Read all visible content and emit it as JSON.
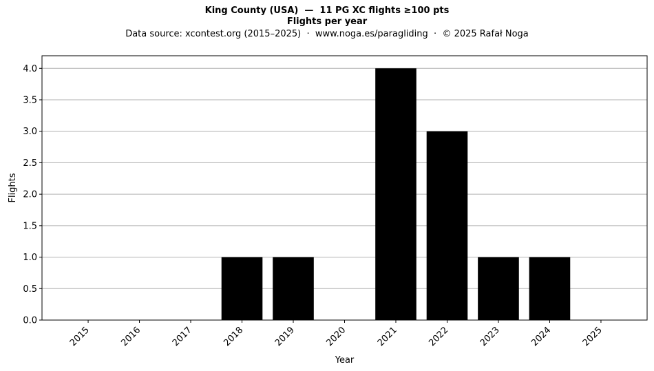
{
  "chart_data": {
    "type": "bar",
    "title": "King County (USA)  —  11 PG XC flights ≥100 pts",
    "subtitle": "Flights per year",
    "source_note": "Data source: xcontest.org (2015–2025)  ·  www.noga.es/paragliding  ·  © 2025 Rafał Noga",
    "xlabel": "Year",
    "ylabel": "Flights",
    "categories": [
      "2015",
      "2016",
      "2017",
      "2018",
      "2019",
      "2020",
      "2021",
      "2022",
      "2023",
      "2024",
      "2025"
    ],
    "values": [
      0,
      0,
      0,
      1,
      1,
      0,
      4,
      3,
      1,
      1,
      0
    ],
    "ylim": [
      0,
      4.2
    ],
    "yticks": [
      "0.0",
      "0.5",
      "1.0",
      "1.5",
      "2.0",
      "2.5",
      "3.0",
      "3.5",
      "4.0"
    ],
    "grid": "horizontal",
    "legend": "none",
    "colors": {
      "bar": "#000000",
      "grid": "#b0b0b0",
      "axis": "#000000",
      "background": "#ffffff"
    }
  }
}
